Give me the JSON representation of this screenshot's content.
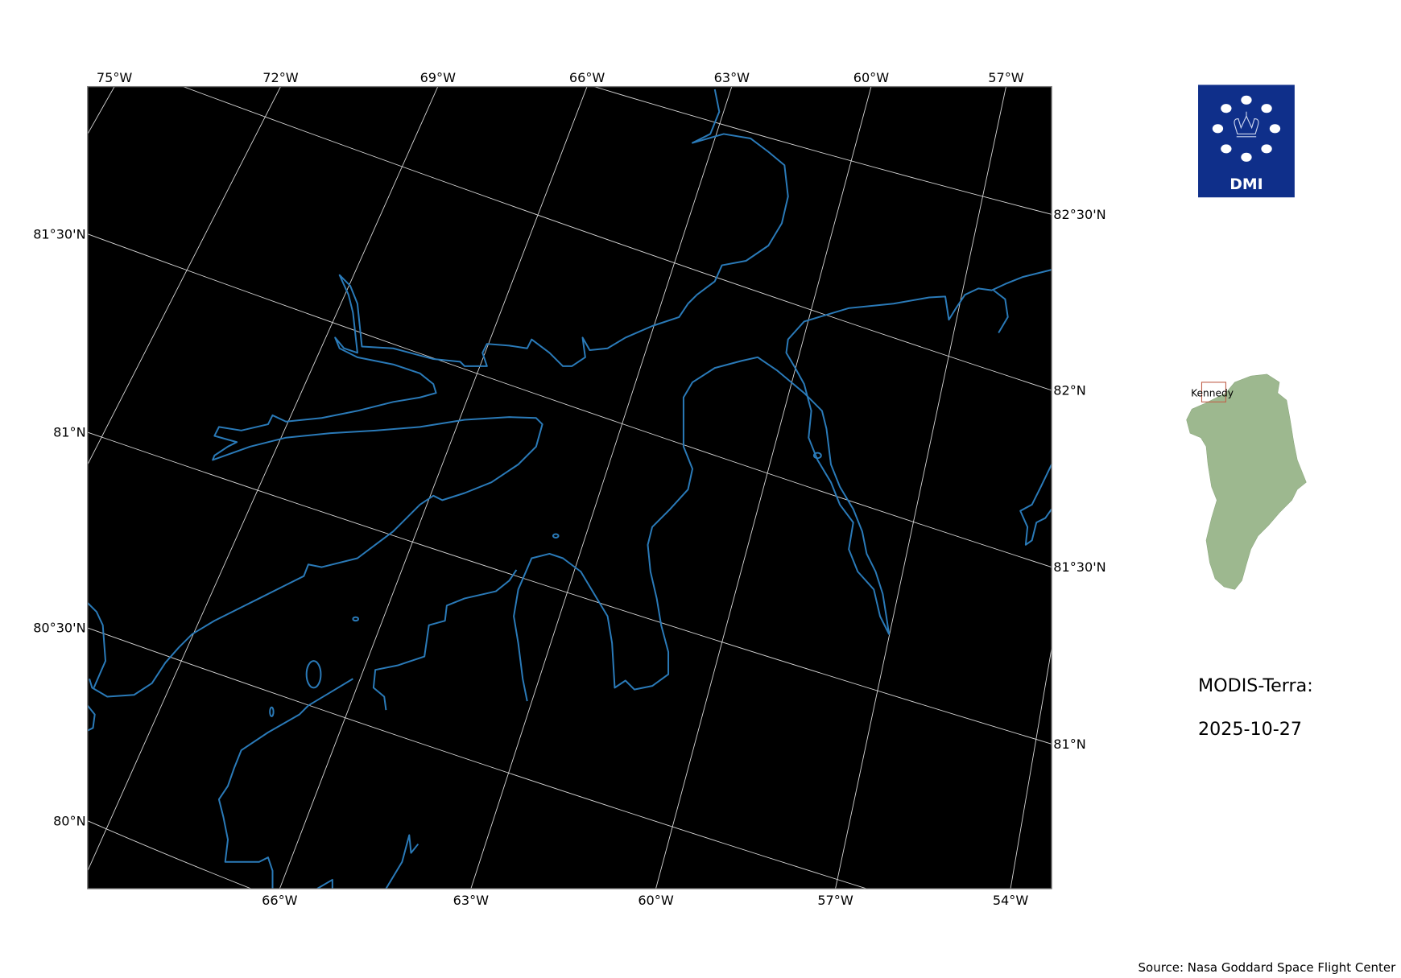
{
  "map": {
    "top_lon_labels": [
      "75°W",
      "72°W",
      "69°W",
      "66°W",
      "63°W",
      "60°W",
      "57°W"
    ],
    "bottom_lon_labels": [
      "66°W",
      "63°W",
      "60°W",
      "57°W",
      "54°W"
    ],
    "left_lat_labels": [
      "81°30'N",
      "81°N",
      "80°30'N",
      "80°N"
    ],
    "right_lat_labels": [
      "82°30'N",
      "82°N",
      "81°30'N",
      "81°N"
    ],
    "background_color": "#000000",
    "coastline_color": "#2a7ab8",
    "gridline_color": "#d8d8d8"
  },
  "logo": {
    "text": "DMI",
    "color": "#0f2f8a",
    "icon": "crown-icon"
  },
  "inset": {
    "region_label": "Kennedy",
    "land_color": "#9db88f",
    "box_color": "#c0604a"
  },
  "info": {
    "sensor": "MODIS-Terra:",
    "date": "2025-10-27"
  },
  "source": "Source: Nasa Goddard Space Flight Center"
}
